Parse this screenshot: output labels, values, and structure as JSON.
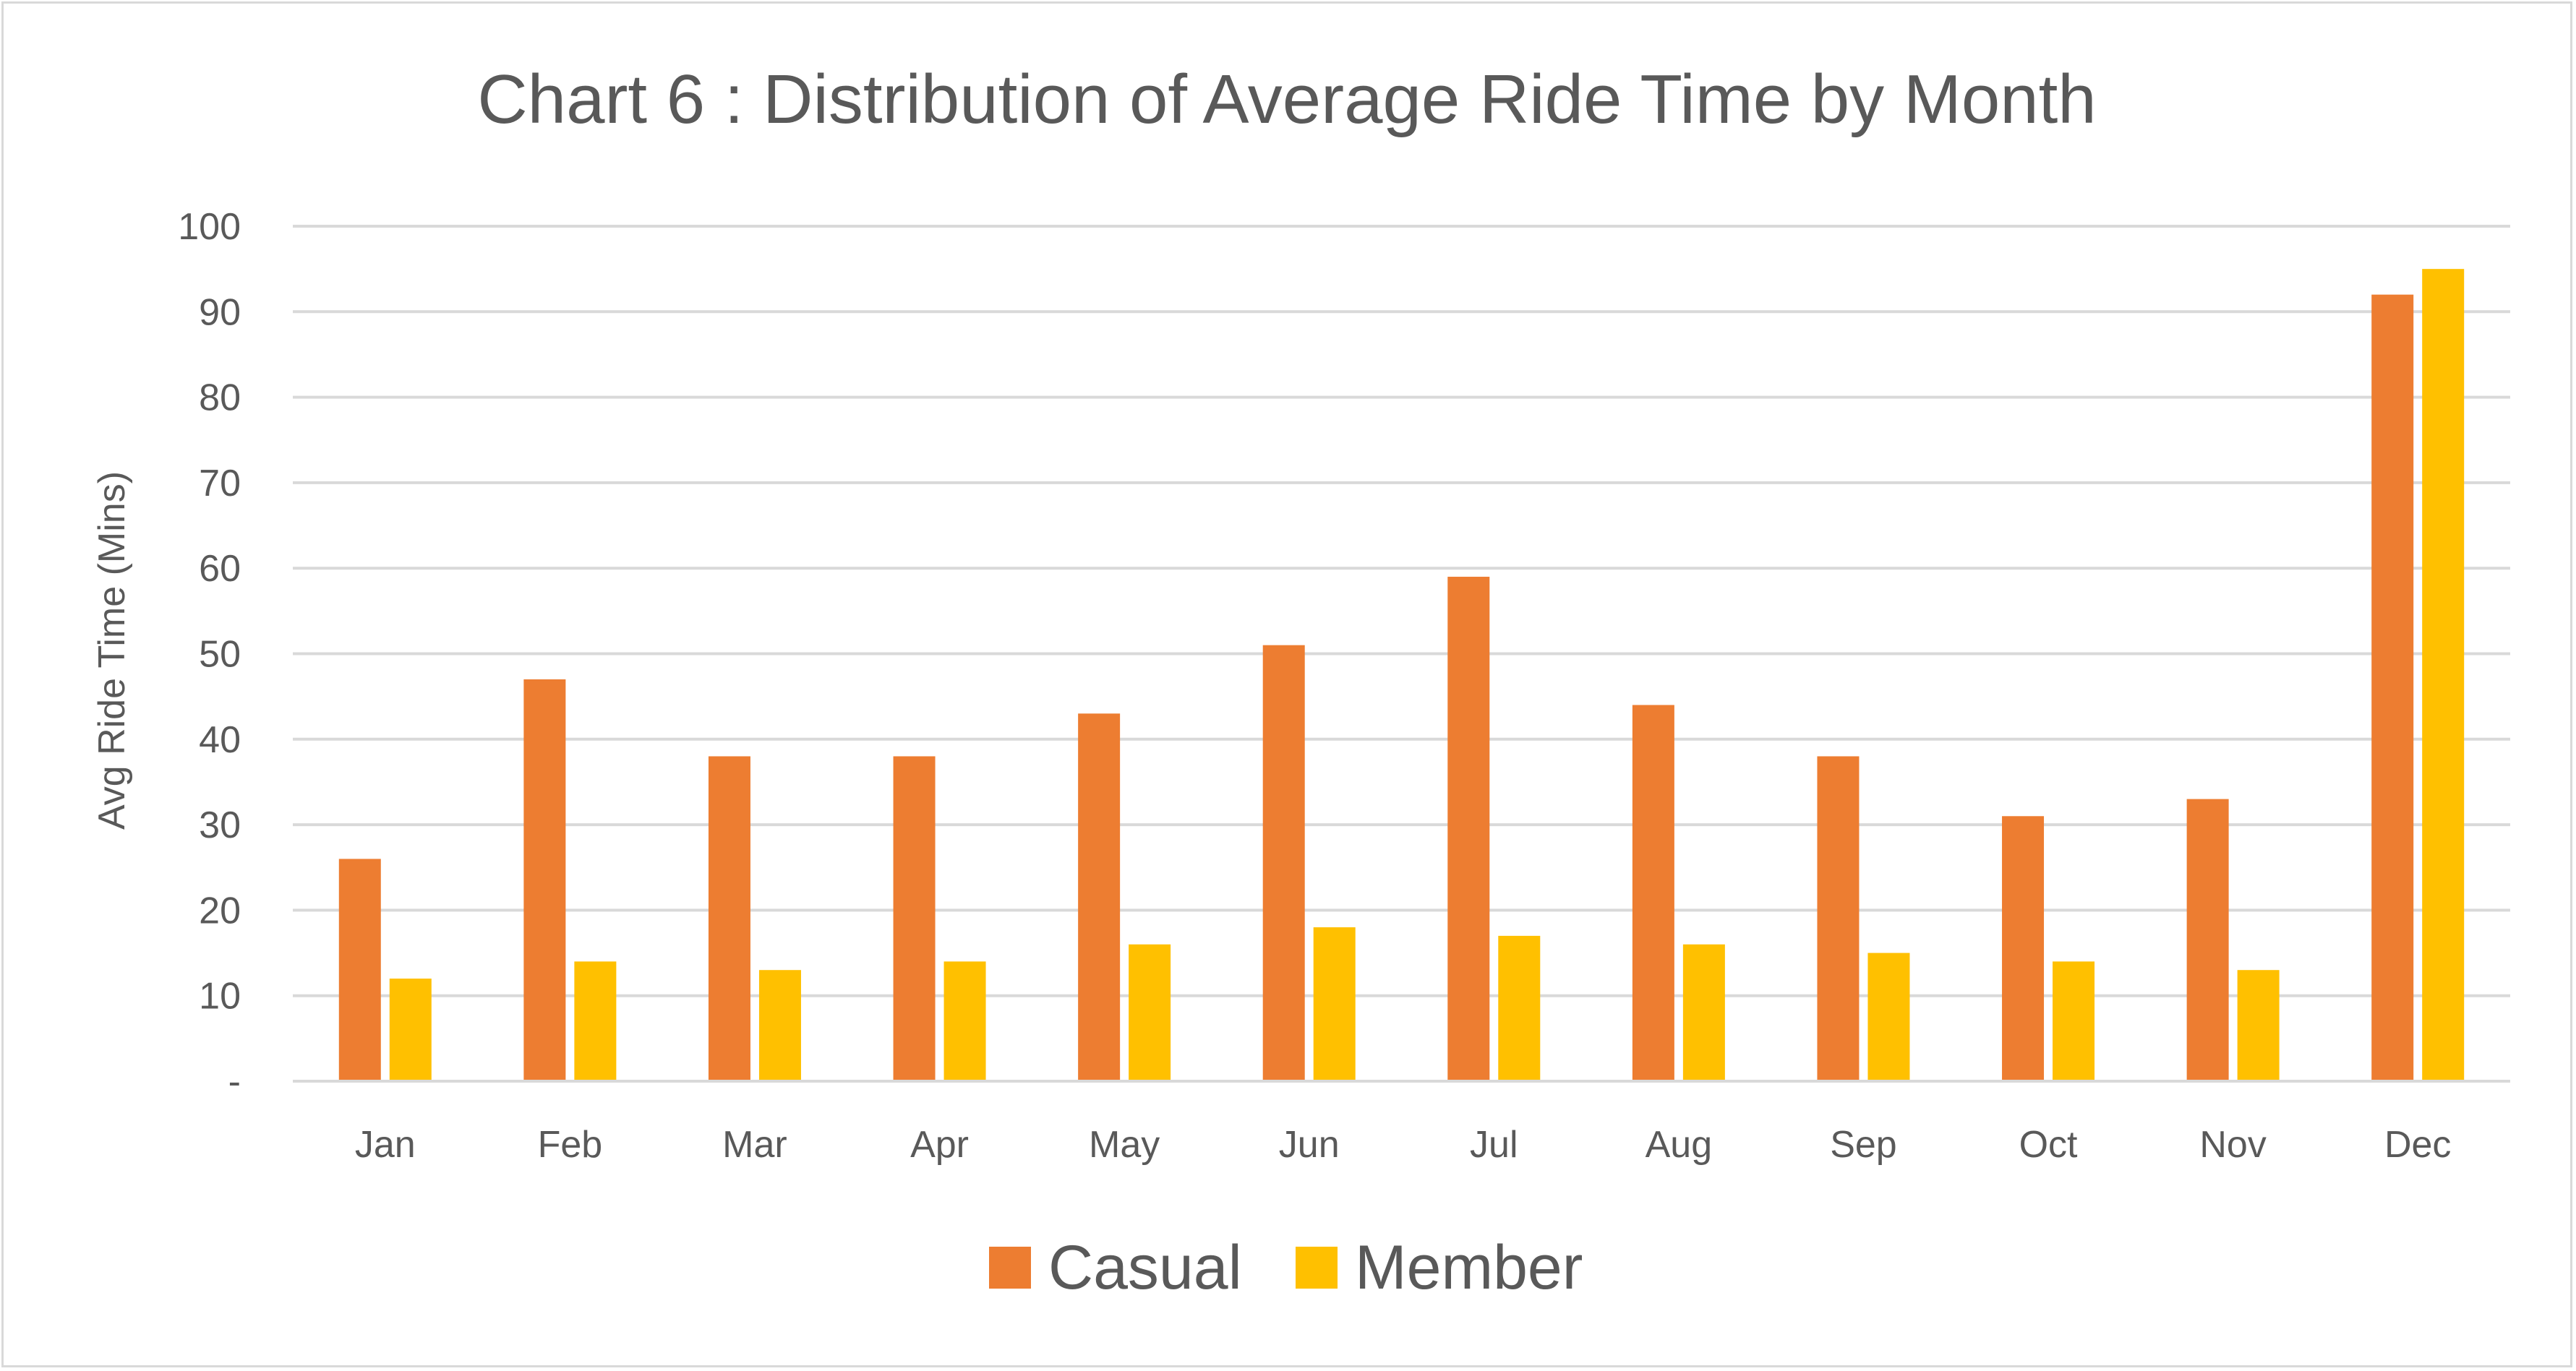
{
  "chart_data": {
    "type": "bar",
    "title": "Chart 6 : Distribution of Average Ride Time by Month",
    "xlabel": "",
    "ylabel": "Avg Ride Time (Mins)",
    "ylim": [
      0,
      100
    ],
    "yticks": [
      0,
      10,
      20,
      30,
      40,
      50,
      60,
      70,
      80,
      90,
      100
    ],
    "ytick_labels": [
      "-",
      "10",
      "20",
      "30",
      "40",
      "50",
      "60",
      "70",
      "80",
      "90",
      "100"
    ],
    "grid": true,
    "legend_position": "bottom",
    "categories": [
      "Jan",
      "Feb",
      "Mar",
      "Apr",
      "May",
      "Jun",
      "Jul",
      "Aug",
      "Sep",
      "Oct",
      "Nov",
      "Dec"
    ],
    "series": [
      {
        "name": "Casual",
        "color": "#ed7d31",
        "values": [
          26,
          47,
          38,
          38,
          43,
          51,
          59,
          44,
          38,
          31,
          33,
          92
        ]
      },
      {
        "name": "Member",
        "color": "#ffc000",
        "values": [
          12,
          14,
          13,
          14,
          16,
          18,
          17,
          16,
          15,
          14,
          13,
          95
        ]
      }
    ]
  }
}
